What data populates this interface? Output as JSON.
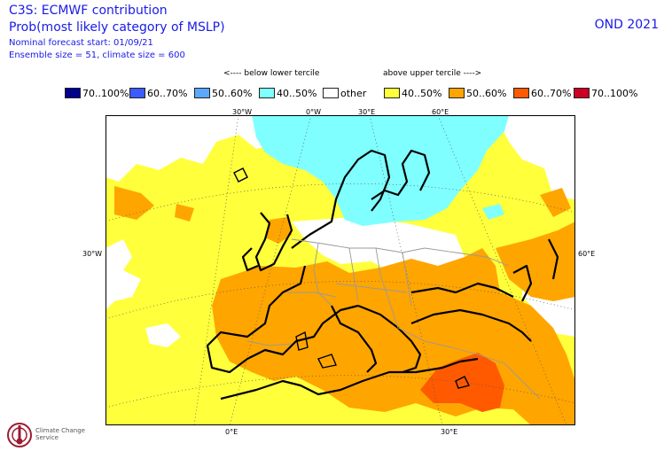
{
  "header": {
    "title_line1": "C3S: ECMWF contribution",
    "title_line2": "Prob(most likely category of MSLP)",
    "start": "Nominal forecast start: 01/09/21",
    "ensemble": "Ensemble size = 51, climate size = 600",
    "season": "OND 2021"
  },
  "legend": {
    "below_label": "<---- below lower tercile",
    "above_label": "above upper tercile ---->",
    "items": [
      {
        "label": "70..100%",
        "color": "#00008b"
      },
      {
        "label": "60..70%",
        "color": "#3c5cff"
      },
      {
        "label": "50..60%",
        "color": "#5ba8ff"
      },
      {
        "label": "40..50%",
        "color": "#7fffff"
      },
      {
        "label": "other",
        "color": "#ffffff"
      },
      {
        "label": "40..50%",
        "color": "#ffff3c"
      },
      {
        "label": "50..60%",
        "color": "#ffa500"
      },
      {
        "label": "60..70%",
        "color": "#ff5a00"
      },
      {
        "label": "70..100%",
        "color": "#cc0022"
      }
    ]
  },
  "graticule": {
    "top": [
      "30°W",
      "0°W",
      "30°E",
      "60°E"
    ],
    "bottom": [
      "0°E",
      "30°E"
    ],
    "left": "30°W",
    "right": "60°E"
  },
  "logo": {
    "text": "Climate Change Service"
  }
}
